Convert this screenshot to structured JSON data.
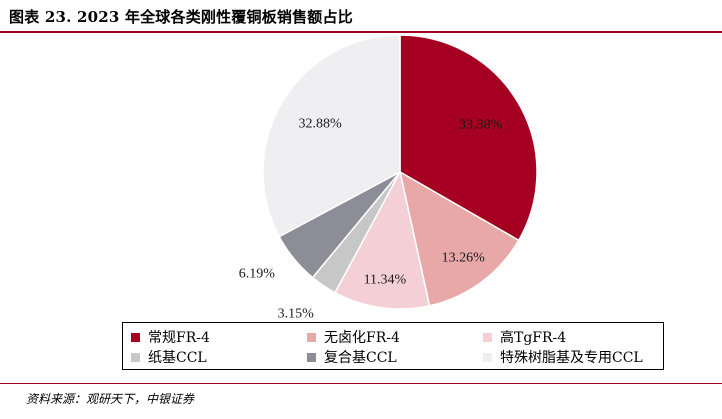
{
  "figure": {
    "title": "图表 23. 2023 年全球各类刚性覆铜板销售额占比",
    "source": "资料来源：观研天下，中银证券"
  },
  "chart_data": {
    "type": "pie",
    "title": "",
    "unit": "%",
    "series": [
      {
        "name": "常规FR-4",
        "value": 33.38,
        "label": "33.38%",
        "color": "#a50021"
      },
      {
        "name": "无卤化FR-4",
        "value": 13.26,
        "label": "13.26%",
        "color": "#e8a8a8"
      },
      {
        "name": "高TgFR-4",
        "value": 11.34,
        "label": "11.34%",
        "color": "#f4d0d6"
      },
      {
        "name": "纸基CCL",
        "value": 3.15,
        "label": "3.15%",
        "color": "#c7c7c7"
      },
      {
        "name": "复合基CCL",
        "value": 6.19,
        "label": "6.19%",
        "color": "#8c8d96"
      },
      {
        "name": "特殊树脂基及专用CCL",
        "value": 32.88,
        "label": "32.88%",
        "color": "#efeff2"
      }
    ],
    "legend_position": "bottom"
  }
}
